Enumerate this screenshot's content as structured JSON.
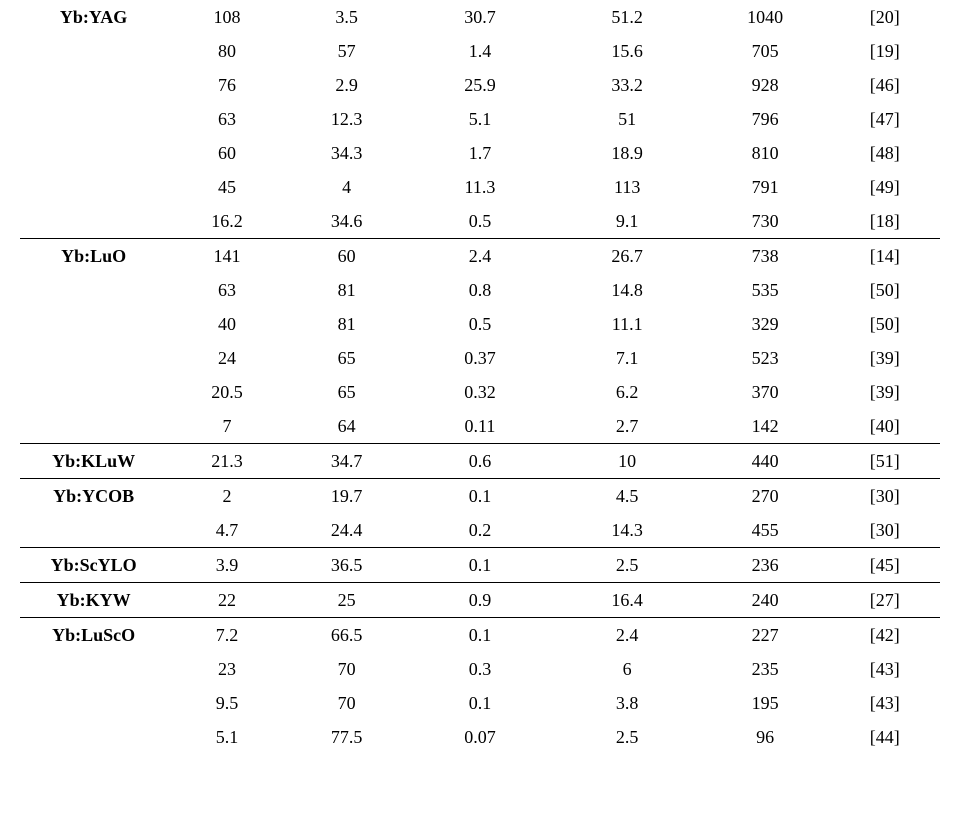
{
  "table": {
    "font_family": "Times New Roman",
    "font_size_pt": 14,
    "text_color": "#000000",
    "border_color": "#000000",
    "column_alignments": [
      "center",
      "center",
      "center",
      "center",
      "center",
      "center",
      "center"
    ],
    "column_widths_pct": [
      16,
      13,
      13,
      16,
      16,
      14,
      12
    ],
    "groups": [
      {
        "label": "Yb:YAG",
        "rows": [
          [
            "108",
            "3.5",
            "30.7",
            "51.2",
            "1040",
            "[20]"
          ],
          [
            "80",
            "57",
            "1.4",
            "15.6",
            "705",
            "[19]"
          ],
          [
            "76",
            "2.9",
            "25.9",
            "33.2",
            "928",
            "[46]"
          ],
          [
            "63",
            "12.3",
            "5.1",
            "51",
            "796",
            "[47]"
          ],
          [
            "60",
            "34.3",
            "1.7",
            "18.9",
            "810",
            "[48]"
          ],
          [
            "45",
            "4",
            "11.3",
            "113",
            "791",
            "[49]"
          ],
          [
            "16.2",
            "34.6",
            "0.5",
            "9.1",
            "730",
            "[18]"
          ]
        ]
      },
      {
        "label": "Yb:LuO",
        "rows": [
          [
            "141",
            "60",
            "2.4",
            "26.7",
            "738",
            "[14]"
          ],
          [
            "63",
            "81",
            "0.8",
            "14.8",
            "535",
            "[50]"
          ],
          [
            "40",
            "81",
            "0.5",
            "11.1",
            "329",
            "[50]"
          ],
          [
            "24",
            "65",
            "0.37",
            "7.1",
            "523",
            "[39]"
          ],
          [
            "20.5",
            "65",
            "0.32",
            "6.2",
            "370",
            "[39]"
          ],
          [
            "7",
            "64",
            "0.11",
            "2.7",
            "142",
            "[40]"
          ]
        ]
      },
      {
        "label": "Yb:KLuW",
        "rows": [
          [
            "21.3",
            "34.7",
            "0.6",
            "10",
            "440",
            "[51]"
          ]
        ]
      },
      {
        "label": "Yb:YCOB",
        "rows": [
          [
            "2",
            "19.7",
            "0.1",
            "4.5",
            "270",
            "[30]"
          ],
          [
            "4.7",
            "24.4",
            "0.2",
            "14.3",
            "455",
            "[30]"
          ]
        ]
      },
      {
        "label": "Yb:ScYLO",
        "rows": [
          [
            "3.9",
            "36.5",
            "0.1",
            "2.5",
            "236",
            "[45]"
          ]
        ]
      },
      {
        "label": "Yb:KYW",
        "rows": [
          [
            "22",
            "25",
            "0.9",
            "16.4",
            "240",
            "[27]"
          ]
        ]
      },
      {
        "label": "Yb:LuScO",
        "rows": [
          [
            "7.2",
            "66.5",
            "0.1",
            "2.4",
            "227",
            "[42]"
          ],
          [
            "23",
            "70",
            "0.3",
            "6",
            "235",
            "[43]"
          ],
          [
            "9.5",
            "70",
            "0.1",
            "3.8",
            "195",
            "[43]"
          ],
          [
            "5.1",
            "77.5",
            "0.07",
            "2.5",
            "96",
            "[44]"
          ]
        ]
      }
    ]
  }
}
